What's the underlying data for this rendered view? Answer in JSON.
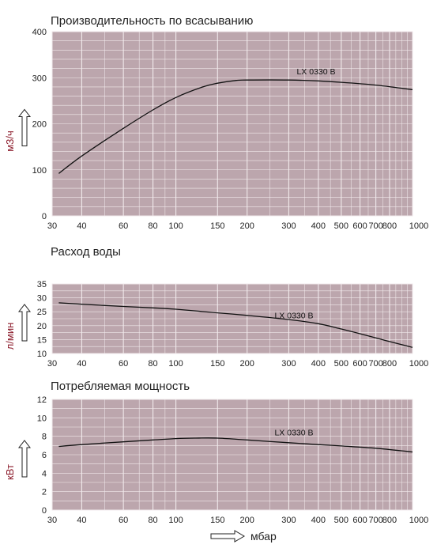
{
  "colors": {
    "plot_bg": "#bca6ad",
    "grid": "#f1eaec",
    "curve": "#111111",
    "ylabel": "#8b1a2a"
  },
  "x_unit": "мбар",
  "x_ticks": [
    30,
    40,
    60,
    80,
    100,
    150,
    200,
    300,
    400,
    500,
    600,
    700,
    800,
    1000
  ],
  "chart_data": [
    {
      "type": "line",
      "title": "Производительность по всасыванию",
      "ylabel": "м3/ч",
      "xscale": "log",
      "xlim": [
        30,
        1000
      ],
      "ylim": [
        0,
        400
      ],
      "yticks": [
        0,
        100,
        200,
        300,
        400
      ],
      "grid": true,
      "series": [
        {
          "name": "LX 0330 B",
          "x": [
            32,
            40,
            60,
            80,
            100,
            130,
            150,
            180,
            200,
            300,
            400,
            500,
            700,
            1000
          ],
          "y": [
            92,
            130,
            190,
            230,
            257,
            280,
            288,
            294,
            295,
            295,
            293,
            290,
            284,
            274
          ]
        }
      ]
    },
    {
      "type": "line",
      "title": "Расход воды",
      "ylabel": "л/мин",
      "xscale": "log",
      "xlim": [
        30,
        1000
      ],
      "ylim": [
        10,
        35
      ],
      "yticks": [
        10,
        15,
        20,
        25,
        30,
        35
      ],
      "grid": true,
      "series": [
        {
          "name": "LX 0330 B",
          "x": [
            32,
            40,
            60,
            80,
            100,
            150,
            200,
            300,
            400,
            500,
            600,
            700,
            800,
            1000
          ],
          "y": [
            28.2,
            27.7,
            26.9,
            26.4,
            25.9,
            24.6,
            23.7,
            22.2,
            20.7,
            18.8,
            17.1,
            15.6,
            14.3,
            12.2
          ]
        }
      ]
    },
    {
      "type": "line",
      "title": "Потребляемая мощность",
      "ylabel": "кВт",
      "xscale": "log",
      "xlim": [
        30,
        1000
      ],
      "ylim": [
        0,
        12
      ],
      "yticks": [
        0,
        2,
        4,
        6,
        8,
        10,
        12
      ],
      "grid": true,
      "series": [
        {
          "name": "LX 0330 B",
          "x": [
            32,
            40,
            60,
            80,
            100,
            120,
            150,
            200,
            300,
            400,
            500,
            700,
            1000
          ],
          "y": [
            6.9,
            7.1,
            7.4,
            7.6,
            7.75,
            7.8,
            7.8,
            7.6,
            7.3,
            7.1,
            6.95,
            6.7,
            6.3
          ]
        }
      ]
    }
  ]
}
